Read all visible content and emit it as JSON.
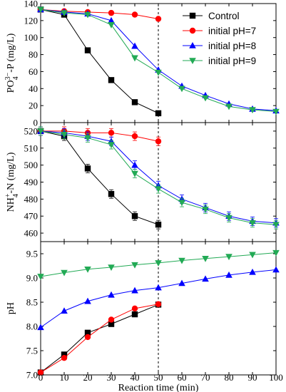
{
  "chart_data": [
    {
      "type": "line",
      "ylabel_main": "PO",
      "ylabel_sub": "4",
      "ylabel_sup": "3−",
      "ylabel_rest": "-P (mg/L)",
      "ylim": [
        0,
        140
      ],
      "yticks": [
        0,
        20,
        40,
        60,
        80,
        100,
        120,
        140
      ],
      "xlim": [
        0,
        100
      ],
      "reference_line_x": 50,
      "legend_position": "top-right",
      "series": [
        {
          "name": "Control",
          "color": "#000000",
          "marker": "square",
          "x": [
            0,
            10,
            20,
            30,
            40,
            50
          ],
          "y": [
            133,
            127,
            85,
            50,
            24,
            11
          ]
        },
        {
          "name": "initial pH=7",
          "color": "#ff0000",
          "marker": "circle",
          "x": [
            0,
            10,
            20,
            30,
            40,
            50
          ],
          "y": [
            133,
            131,
            130,
            129,
            127,
            122
          ]
        },
        {
          "name": "initial pH=8",
          "color": "#0000ff",
          "marker": "triangle-up",
          "x": [
            0,
            10,
            20,
            30,
            40,
            50,
            60,
            70,
            80,
            90,
            100
          ],
          "y": [
            133,
            130,
            128,
            120,
            90,
            62,
            43,
            32,
            22,
            16,
            14
          ]
        },
        {
          "name": "initial pH=9",
          "color": "#22aa55",
          "marker": "triangle-down",
          "x": [
            0,
            10,
            20,
            30,
            40,
            50,
            60,
            70,
            80,
            90,
            100
          ],
          "y": [
            133,
            129,
            127,
            115,
            76,
            59,
            40,
            29,
            19,
            15,
            13
          ]
        }
      ]
    },
    {
      "type": "line",
      "ylabel_main": "NH",
      "ylabel_sub": "4",
      "ylabel_sup": "+",
      "ylabel_rest": "-N (mg/L)",
      "ylim": [
        455,
        525
      ],
      "yticks": [
        460,
        470,
        480,
        490,
        500,
        510,
        520
      ],
      "xlim": [
        0,
        100
      ],
      "reference_line_x": 50,
      "series": [
        {
          "name": "Control",
          "color": "#000000",
          "marker": "square",
          "x": [
            0,
            10,
            20,
            30,
            40,
            50
          ],
          "y": [
            520,
            517,
            498,
            483,
            470,
            465
          ]
        },
        {
          "name": "initial pH=7",
          "color": "#ff0000",
          "marker": "circle",
          "x": [
            0,
            10,
            20,
            30,
            40,
            50
          ],
          "y": [
            520,
            520,
            519,
            519,
            517,
            514
          ]
        },
        {
          "name": "initial pH=8",
          "color": "#0000ff",
          "marker": "triangle-up",
          "x": [
            0,
            10,
            20,
            30,
            40,
            50,
            60,
            70,
            80,
            90,
            100
          ],
          "y": [
            520,
            519,
            517,
            514,
            500,
            488,
            480,
            475,
            470,
            467,
            466
          ]
        },
        {
          "name": "initial pH=9",
          "color": "#22aa55",
          "marker": "triangle-down",
          "x": [
            0,
            10,
            20,
            30,
            40,
            50,
            60,
            70,
            80,
            90,
            100
          ],
          "y": [
            520,
            518,
            516,
            512,
            495,
            486,
            478,
            474,
            469,
            466,
            465
          ]
        }
      ]
    },
    {
      "type": "line",
      "ylabel_main": "pH",
      "ylim": [
        7.0,
        9.75
      ],
      "yticks": [
        7.0,
        7.5,
        8.0,
        8.5,
        9.0,
        9.5
      ],
      "yticklabels": [
        "7.0",
        "7.5",
        "8.0",
        "8.5",
        "9.0",
        "9.5"
      ],
      "xlim": [
        0,
        100
      ],
      "xticks": [
        0,
        10,
        20,
        30,
        40,
        50,
        60,
        70,
        80,
        90,
        100
      ],
      "xlabel": "Reaction time (min)",
      "reference_line_x": 50,
      "series": [
        {
          "name": "Control",
          "color": "#000000",
          "marker": "square",
          "x": [
            0,
            10,
            20,
            30,
            40,
            50
          ],
          "y": [
            7.05,
            7.42,
            7.87,
            8.05,
            8.25,
            8.45
          ]
        },
        {
          "name": "initial pH=7",
          "color": "#ff0000",
          "marker": "circle",
          "x": [
            0,
            10,
            20,
            30,
            40,
            50
          ],
          "y": [
            7.05,
            7.35,
            7.78,
            8.14,
            8.37,
            8.46
          ]
        },
        {
          "name": "initial pH=8",
          "color": "#0000ff",
          "marker": "triangle-up",
          "x": [
            0,
            10,
            20,
            30,
            40,
            50,
            60,
            70,
            80,
            90,
            100
          ],
          "y": [
            7.98,
            8.32,
            8.52,
            8.65,
            8.74,
            8.8,
            8.89,
            8.98,
            9.06,
            9.12,
            9.17
          ]
        },
        {
          "name": "initial pH=9",
          "color": "#22aa55",
          "marker": "triangle-down",
          "x": [
            0,
            10,
            20,
            30,
            40,
            50,
            60,
            70,
            80,
            90,
            100
          ],
          "y": [
            9.03,
            9.11,
            9.18,
            9.22,
            9.27,
            9.31,
            9.36,
            9.4,
            9.44,
            9.48,
            9.52
          ]
        }
      ]
    }
  ]
}
